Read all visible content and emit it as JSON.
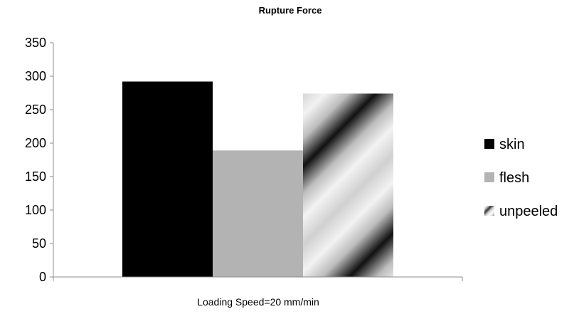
{
  "chart_data": {
    "type": "bar",
    "title": "Rupture Force",
    "xlabel": "Loading Speed=20 mm/min",
    "ylabel": "",
    "categories": [
      "Loading Speed=20 mm/min"
    ],
    "series": [
      {
        "name": "skin",
        "values": [
          292
        ],
        "color": "#000000",
        "fill": "solid"
      },
      {
        "name": "flesh",
        "values": [
          189
        ],
        "color": "#b3b3b3",
        "fill": "solid"
      },
      {
        "name": "unpeeled",
        "values": [
          274
        ],
        "color": "#000000",
        "fill": "diagonal-gradient-stripes"
      }
    ],
    "ylim": [
      0,
      350
    ],
    "yticks": [
      0,
      50,
      100,
      150,
      200,
      250,
      300,
      350
    ],
    "grid": false,
    "legend": "right"
  }
}
